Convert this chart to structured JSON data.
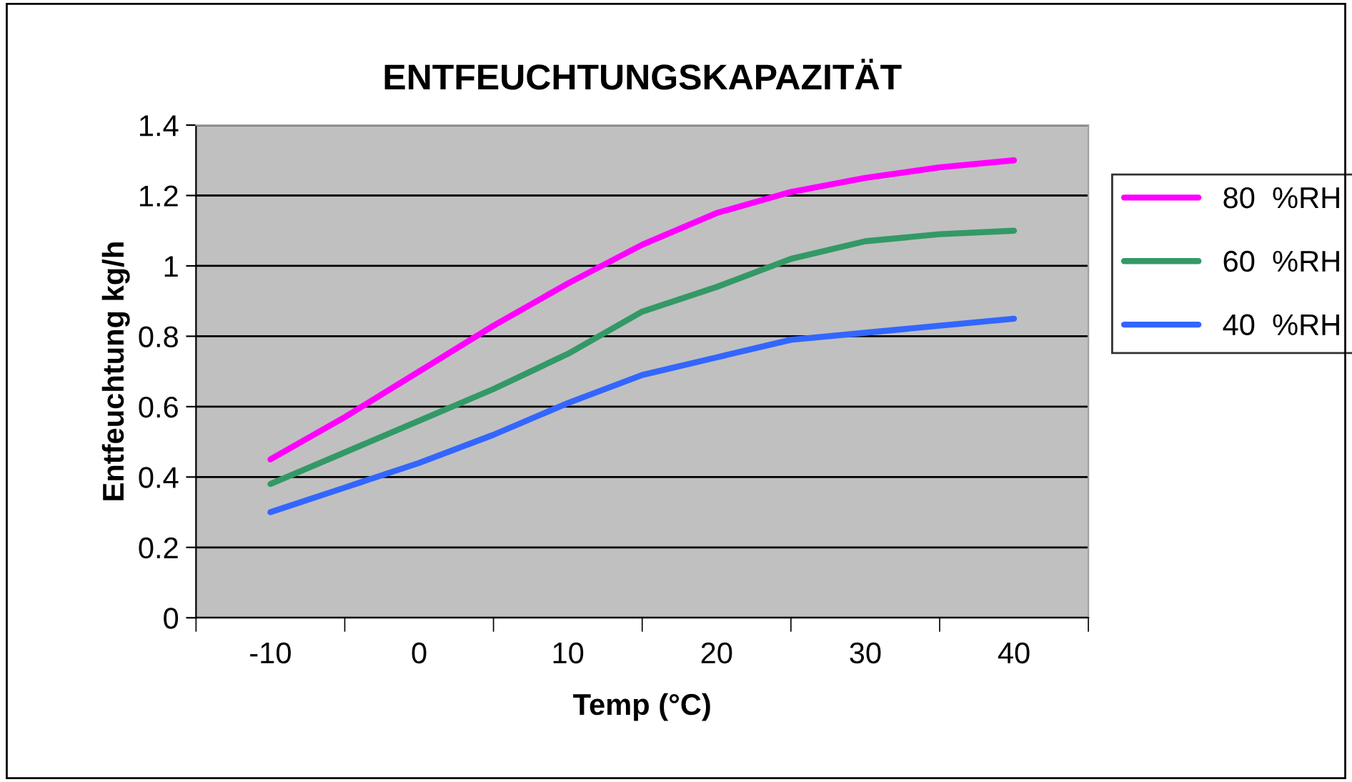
{
  "chart_data": {
    "type": "line",
    "title": "ENTFEUCHTUNGSKAPAZITÄT",
    "xlabel": "Temp (°C)",
    "ylabel": "Entfeuchtung kg/h",
    "categories": [
      "-10",
      null,
      "0",
      null,
      "10",
      null,
      "20",
      null,
      "30",
      null,
      "40"
    ],
    "series": [
      {
        "name": "80  %RH",
        "color": "#ff00ff",
        "values": [
          0.45,
          0.57,
          0.7,
          0.83,
          0.95,
          1.06,
          1.15,
          1.21,
          1.25,
          1.28,
          1.3
        ]
      },
      {
        "name": "60  %RH",
        "color": "#339966",
        "values": [
          0.38,
          0.47,
          0.56,
          0.65,
          0.75,
          0.87,
          0.94,
          1.02,
          1.07,
          1.09,
          1.1
        ]
      },
      {
        "name": "40  %RH",
        "color": "#3366ff",
        "values": [
          0.3,
          0.37,
          0.44,
          0.52,
          0.61,
          0.69,
          0.74,
          0.79,
          0.81,
          0.83,
          0.85
        ]
      }
    ],
    "ylim": [
      0,
      1.4
    ],
    "yticks": [
      0,
      0.2,
      0.4,
      0.6,
      0.8,
      1,
      1.2,
      1.4
    ],
    "grid": "y",
    "legend": "right",
    "marker": "none",
    "line_style": "solid"
  }
}
